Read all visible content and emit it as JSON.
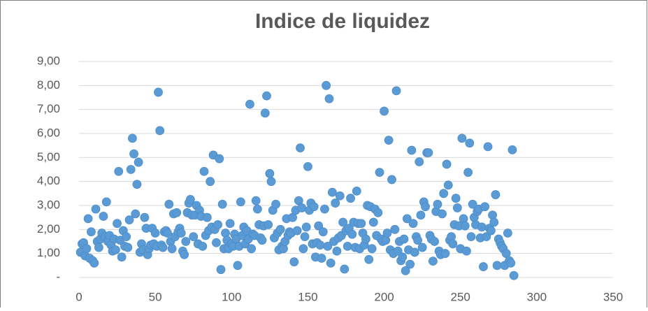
{
  "chart_data": {
    "type": "scatter",
    "title": "Indice de liquidez",
    "color": "#5b9bd5",
    "grid": true,
    "xlim": [
      0,
      350
    ],
    "xticks": [
      0,
      50,
      100,
      150,
      200,
      250,
      300,
      350
    ],
    "ylim": [
      0,
      9
    ],
    "yticks": [
      {
        "value": 0,
        "label": "-"
      },
      {
        "value": 1,
        "label": "1,00"
      },
      {
        "value": 2,
        "label": "2,00"
      },
      {
        "value": 3,
        "label": "3,00"
      },
      {
        "value": 4,
        "label": "4,00"
      },
      {
        "value": 5,
        "label": "5,00"
      },
      {
        "value": 6,
        "label": "6,00"
      },
      {
        "value": 7,
        "label": "7,00"
      },
      {
        "value": 8,
        "label": "8,00"
      },
      {
        "value": 9,
        "label": "9,00"
      }
    ],
    "x": [
      1,
      2,
      3,
      4,
      5,
      6,
      7,
      8,
      9,
      10,
      11,
      12,
      13,
      14,
      15,
      16,
      17,
      18,
      19,
      20,
      21,
      22,
      23,
      24,
      25,
      26,
      27,
      28,
      29,
      30,
      31,
      32,
      33,
      34,
      35,
      36,
      37,
      38,
      39,
      40,
      41,
      42,
      43,
      44,
      45,
      46,
      47,
      48,
      49,
      50,
      51,
      52,
      53,
      54,
      55,
      56,
      57,
      58,
      59,
      60,
      61,
      62,
      63,
      64,
      65,
      66,
      67,
      68,
      69,
      70,
      71,
      72,
      73,
      74,
      75,
      76,
      77,
      78,
      79,
      80,
      81,
      82,
      83,
      84,
      85,
      86,
      87,
      88,
      89,
      90,
      91,
      92,
      93,
      94,
      95,
      96,
      97,
      98,
      99,
      100,
      101,
      102,
      103,
      104,
      105,
      106,
      107,
      108,
      109,
      110,
      111,
      112,
      113,
      114,
      115,
      116,
      117,
      118,
      119,
      120,
      121,
      122,
      123,
      124,
      125,
      126,
      127,
      128,
      129,
      130,
      131,
      132,
      133,
      134,
      135,
      136,
      137,
      138,
      139,
      140,
      141,
      142,
      143,
      144,
      145,
      146,
      147,
      148,
      149,
      150,
      151,
      152,
      153,
      154,
      155,
      156,
      157,
      158,
      159,
      160,
      161,
      162,
      163,
      164,
      165,
      166,
      167,
      168,
      169,
      170,
      171,
      172,
      173,
      174,
      175,
      176,
      177,
      178,
      179,
      180,
      181,
      182,
      183,
      184,
      185,
      186,
      187,
      188,
      189,
      190,
      191,
      192,
      193,
      194,
      195,
      196,
      197,
      198,
      199,
      200,
      201,
      202,
      203,
      204,
      205,
      206,
      207,
      208,
      209,
      210,
      211,
      212,
      213,
      214,
      215,
      216,
      217,
      218,
      219,
      220,
      221,
      222,
      223,
      224,
      225,
      226,
      227,
      228,
      229,
      230,
      231,
      232,
      233,
      234,
      235,
      236,
      237,
      238,
      239,
      240,
      241,
      242,
      243,
      244,
      245,
      246,
      247,
      248,
      249,
      250,
      251,
      252,
      253,
      254,
      255,
      256,
      257,
      258,
      259,
      260,
      261,
      262,
      263,
      264,
      265,
      266,
      267,
      268,
      269,
      270,
      271,
      272,
      273,
      274,
      275,
      276,
      277,
      278,
      279,
      280,
      281,
      282,
      283,
      284,
      285
    ],
    "values": [
      1.05,
      1.4,
      1.45,
      0.9,
      1.2,
      2.45,
      0.8,
      1.9,
      0.7,
      0.6,
      2.85,
      1.5,
      1.25,
      1.6,
      1.85,
      2.55,
      1.7,
      3.15,
      1.5,
      1.75,
      1.35,
      1.1,
      1.6,
      1.15,
      2.25,
      4.42,
      1.55,
      0.85,
      1.95,
      1.3,
      1.7,
      1.25,
      2.4,
      4.5,
      5.8,
      5.15,
      2.65,
      3.88,
      4.8,
      1.05,
      1.4,
      1.15,
      2.5,
      2.05,
      0.95,
      1.2,
      1.35,
      2.05,
      1.4,
      1.85,
      1.3,
      7.72,
      6.12,
      1.35,
      1.25,
      1.9,
      1.95,
      1.85,
      3.05,
      1.5,
      1.2,
      2.65,
      1.7,
      2.7,
      1.9,
      2.05,
      1.85,
      1.1,
      0.95,
      1.5,
      2.7,
      3.1,
      3.25,
      2.6,
      1.7,
      2.6,
      3.0,
      1.4,
      2.8,
      2.55,
      1.3,
      4.42,
      1.75,
      2.5,
      1.95,
      4.0,
      2.1,
      5.1,
      2.0,
      1.45,
      2.2,
      4.95,
      0.33,
      3.05,
      1.2,
      1.85,
      1.55,
      1.2,
      2.25,
      1.4,
      1.3,
      1.8,
      1.6,
      0.5,
      1.3,
      3.15,
      1.75,
      2.1,
      1.4,
      1.95,
      1.6,
      7.22,
      1.2,
      1.8,
      1.75,
      3.2,
      2.85,
      2.2,
      1.65,
      1.55,
      2.15,
      6.85,
      7.57,
      2.2,
      4.33,
      4.0,
      2.8,
      1.65,
      3.05,
      1.85,
      1.15,
      2.0,
      1.3,
      1.2,
      1.5,
      2.45,
      1.75,
      1.9,
      1.85,
      2.5,
      0.65,
      2.8,
      1.95,
      3.2,
      5.4,
      2.9,
      1.2,
      1.7,
      2.1,
      4.62,
      2.8,
      3.1,
      1.4,
      2.95,
      0.85,
      1.45,
      2.15,
      1.35,
      0.8,
      1.9,
      2.85,
      8.0,
      1.3,
      7.45,
      0.6,
      3.55,
      1.5,
      3.1,
      1.1,
      1.65,
      3.4,
      1.75,
      2.3,
      0.35,
      1.95,
      1.3,
      2.05,
      3.3,
      1.8,
      2.3,
      1.25,
      3.6,
      2.25,
      1.2,
      2.25,
      1.85,
      1.35,
      1.6,
      3.0,
      0.75,
      2.95,
      1.2,
      2.3,
      2.85,
      1.75,
      2.7,
      4.38,
      1.6,
      1.5,
      6.93,
      1.55,
      1.85,
      5.72,
      1.15,
      4.08,
      1.0,
      2.0,
      7.78,
      1.1,
      1.5,
      0.7,
      0.85,
      1.6,
      0.28,
      2.45,
      1.15,
      0.55,
      5.3,
      2.25,
      1.05,
      1.7,
      1.55,
      4.82,
      2.6,
      1.25,
      3.15,
      2.95,
      5.2,
      5.2,
      1.75,
      1.6,
      0.68,
      1.5,
      2.75,
      3.05,
      1.1,
      0.95,
      2.65,
      3.5,
      1.0,
      4.72,
      3.85,
      1.55,
      1.7,
      1.4,
      2.2,
      3.3,
      2.9,
      2.15,
      1.2,
      5.8,
      2.45,
      2.15,
      1.1,
      4.38,
      5.6,
      1.7,
      3.05,
      2.5,
      2.2,
      2.75,
      2.85,
      1.65,
      2.1,
      0.45,
      2.95,
      1.7,
      5.45,
      2.05,
      1.95,
      2.6,
      2.3,
      3.45,
      0.5,
      1.6,
      1.45,
      1.3,
      1.2,
      0.5,
      1.0,
      1.85,
      0.7,
      0.6,
      5.32,
      0.08
    ]
  }
}
